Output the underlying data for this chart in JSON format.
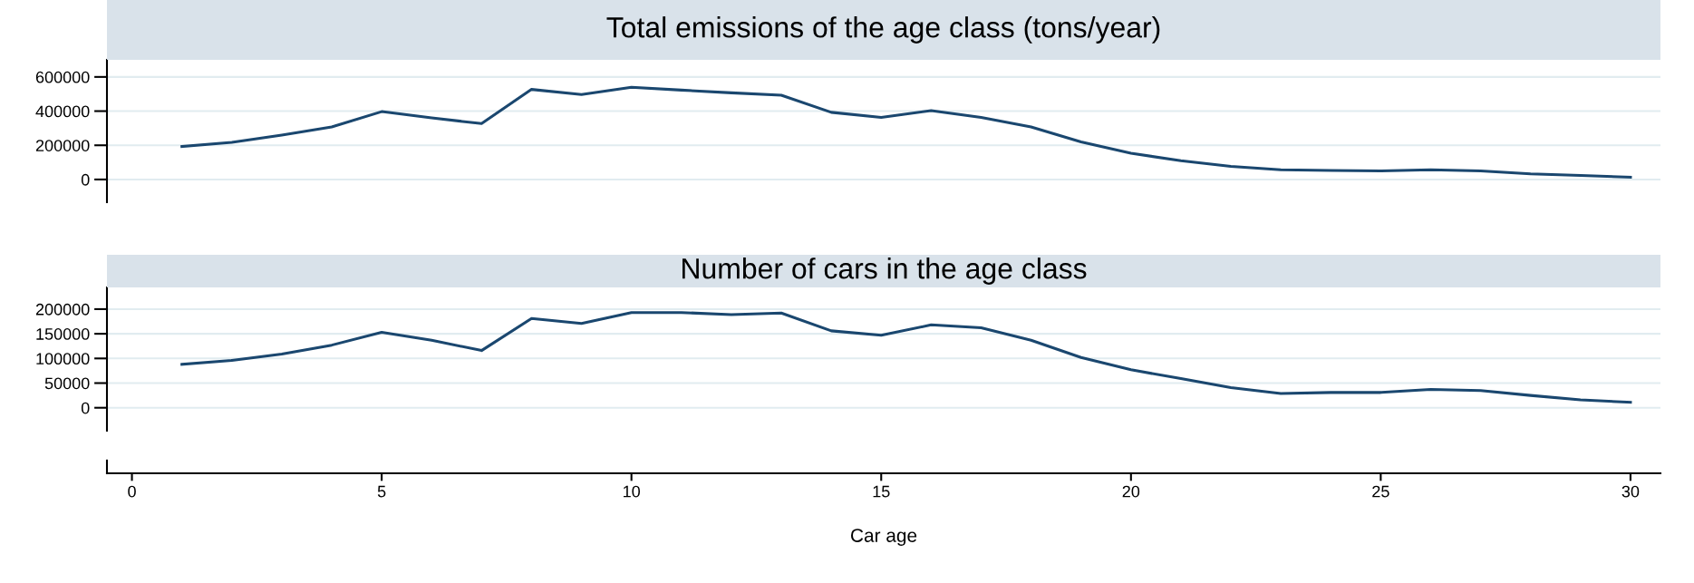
{
  "chart_data": [
    {
      "type": "line",
      "title": "Total emissions of the age class (tons/year)",
      "x": [
        1,
        2,
        3,
        4,
        5,
        6,
        7,
        8,
        9,
        10,
        11,
        12,
        13,
        14,
        15,
        16,
        17,
        18,
        19,
        20,
        21,
        22,
        23,
        24,
        25,
        26,
        27,
        28,
        29,
        30
      ],
      "series": [
        {
          "color": "#1a476f",
          "values": [
            193000,
            217000,
            260000,
            307000,
            397000,
            360000,
            327000,
            527000,
            497000,
            540000,
            523000,
            507000,
            493000,
            393000,
            363000,
            403000,
            363000,
            307000,
            220000,
            153000,
            110000,
            77000,
            57000,
            53000,
            50000,
            57000,
            50000,
            33000,
            23000,
            13000
          ]
        }
      ],
      "xlim": [
        -0.5,
        30.6
      ],
      "xticks": [
        0,
        5,
        10,
        15,
        20,
        25,
        30
      ],
      "ylim": [
        -133000,
        700000
      ],
      "yticks": [
        0,
        200000,
        400000,
        600000
      ],
      "grid": "y",
      "tick_labels": "y"
    },
    {
      "type": "line",
      "title": "Number of cars in the age class",
      "xlabel": "Car age",
      "x": [
        1,
        2,
        3,
        4,
        5,
        6,
        7,
        8,
        9,
        10,
        11,
        12,
        13,
        14,
        15,
        16,
        17,
        18,
        19,
        20,
        21,
        22,
        23,
        24,
        25,
        26,
        27,
        28,
        29,
        30
      ],
      "series": [
        {
          "color": "#1a476f",
          "values": [
            88000,
            96000,
            109000,
            127000,
            153000,
            137000,
            116000,
            181000,
            171000,
            193000,
            193000,
            189000,
            192000,
            156000,
            147000,
            168000,
            162000,
            137000,
            102000,
            77000,
            59000,
            41000,
            29000,
            31000,
            31000,
            37000,
            35000,
            25000,
            16000,
            11000
          ]
        }
      ],
      "xlim": [
        -0.5,
        30.6
      ],
      "xticks": [
        0,
        5,
        10,
        15,
        20,
        25,
        30
      ],
      "ylim": [
        -46500,
        244000
      ],
      "yticks": [
        0,
        50000,
        100000,
        150000,
        200000
      ],
      "grid": "y"
    }
  ]
}
